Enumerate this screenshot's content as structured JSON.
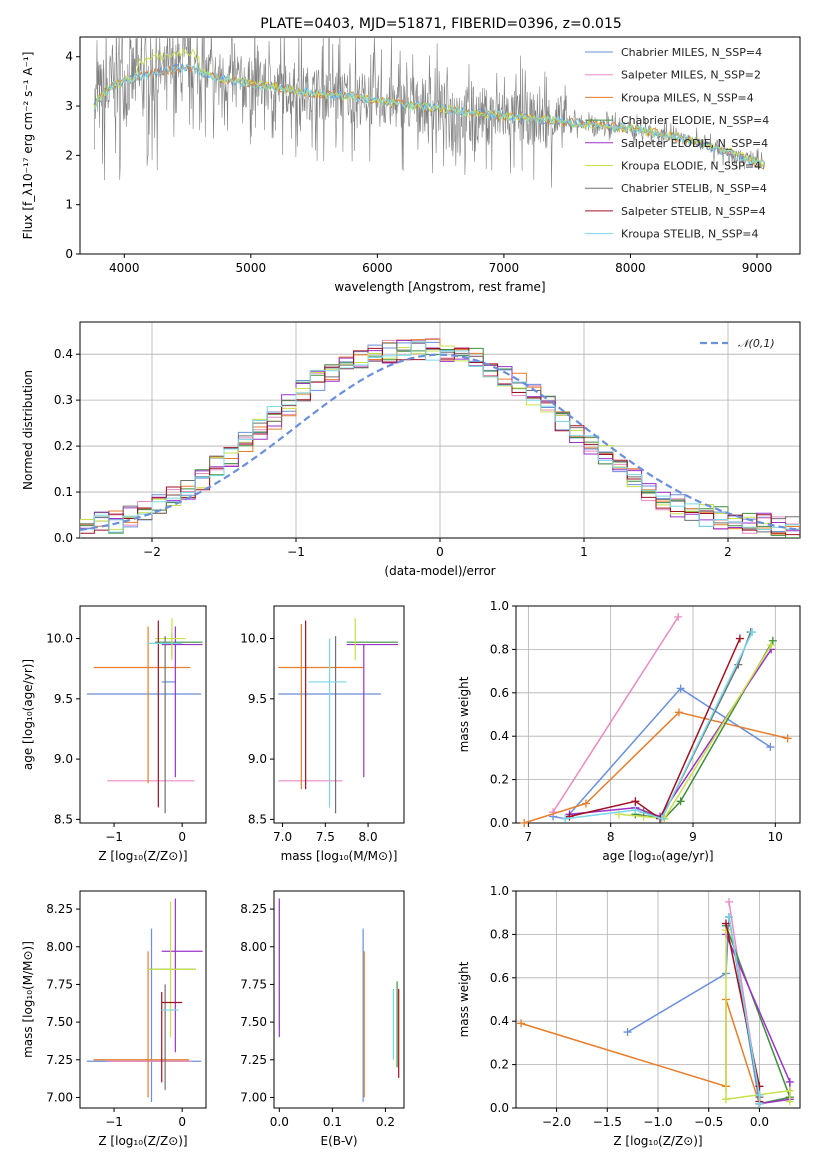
{
  "figure_title": "PLATE=0403, MJD=51871, FIBERID=0396, z=0.015",
  "colors": [
    "#6a8fdb",
    "#e88bc4",
    "#e87d2a",
    "#3f8f3f",
    "#9b33c9",
    "#c8e04a",
    "#707070",
    "#a01020",
    "#78d8e8"
  ],
  "chart_data": [
    {
      "panel": "spectrum",
      "type": "line",
      "xlabel": "wavelength [Angstrom, rest frame]",
      "ylabel": "Flux [f_λ10⁻¹⁷ erg cm⁻² s⁻¹ A⁻¹]",
      "xlim": [
        3650,
        9340
      ],
      "ylim": [
        0,
        4.4
      ],
      "xticks": [
        "4000",
        "5000",
        "6000",
        "7000",
        "8000",
        "9000"
      ],
      "yticks": [
        "0",
        "1",
        "2",
        "3",
        "4"
      ],
      "legend_position": "upper right",
      "legend": [
        "Chabrier MILES, N_SSP=4",
        "Salpeter MILES, N_SSP=2",
        "Kroupa MILES, N_SSP=4",
        "Chabrier ELODIE, N_SSP=4",
        "Salpeter ELODIE, N_SSP=4",
        "Kroupa ELODIE, N_SSP=4",
        "Chabrier STELIB, N_SSP=4",
        "Salpeter STELIB, N_SSP=4",
        "Kroupa STELIB, N_SSP=4"
      ],
      "continuum": {
        "x": [
          3750,
          3800,
          3900,
          4000,
          4100,
          4200,
          4300,
          4400,
          4500,
          4700,
          5000,
          5300,
          5500,
          5800,
          6000,
          6300,
          6500,
          6800,
          7000,
          7200,
          7400,
          7600,
          7800,
          8000,
          8200,
          8400,
          8600,
          8800,
          9000,
          9050
        ],
        "y": [
          2.9,
          3.15,
          3.4,
          3.5,
          3.6,
          3.65,
          3.7,
          3.75,
          3.8,
          3.6,
          3.45,
          3.35,
          3.25,
          3.2,
          3.1,
          3.0,
          2.95,
          2.85,
          2.8,
          2.75,
          2.7,
          2.65,
          2.6,
          2.55,
          2.45,
          2.35,
          2.2,
          2.05,
          1.85,
          1.8
        ]
      },
      "observed_range": [
        3760,
        9060
      ],
      "observed_max": 4.4
    },
    {
      "panel": "residuals",
      "type": "line",
      "xlabel": "(data-model)/error",
      "ylabel": "Normed distribution",
      "xlim": [
        -2.5,
        2.5
      ],
      "ylim": [
        0,
        0.47
      ],
      "xticks": [
        "−2",
        "−1",
        "0",
        "1",
        "2"
      ],
      "yticks": [
        "0.0",
        "0.1",
        "0.2",
        "0.3",
        "0.4"
      ],
      "grid": true,
      "legend": [
        "𝒩(0,1)"
      ],
      "legend_position": "upper right",
      "bin_width": 0.1,
      "hist_curve": [
        0.022,
        0.032,
        0.034,
        0.046,
        0.062,
        0.074,
        0.09,
        0.108,
        0.13,
        0.155,
        0.18,
        0.205,
        0.235,
        0.262,
        0.29,
        0.318,
        0.34,
        0.362,
        0.378,
        0.39,
        0.398,
        0.405,
        0.408,
        0.41,
        0.409,
        0.406,
        0.4,
        0.39,
        0.375,
        0.356,
        0.334,
        0.31,
        0.285,
        0.258,
        0.232,
        0.207,
        0.18,
        0.152,
        0.128,
        0.105,
        0.085,
        0.07,
        0.058,
        0.05,
        0.044,
        0.038,
        0.034,
        0.03,
        0.027,
        0.025
      ]
    },
    {
      "panel": "age-vs-Z",
      "type": "scatter",
      "xlabel": "Z [log₁₀(Z/Z⊙)]",
      "ylabel": "age [log₁₀(age/yr)]",
      "xlim": [
        -1.5,
        0.35
      ],
      "ylim": [
        8.47,
        10.27
      ],
      "xticks": [
        "−1",
        "0"
      ],
      "yticks": [
        "8.5",
        "9.0",
        "9.5",
        "10.0"
      ],
      "points": [
        {
          "c": 0,
          "x": -0.2,
          "y": 9.64,
          "xl": -0.3,
          "xh": -0.1,
          "yl": 9.64,
          "yh": 9.64
        },
        {
          "c": 0,
          "x": -0.4,
          "y": 9.54,
          "xl": -1.4,
          "xh": 0.28,
          "yl": 9.54,
          "yh": 9.54
        },
        {
          "c": 1,
          "x": -0.2,
          "y": 8.82,
          "xl": -1.1,
          "xh": 0.18,
          "yl": 8.82,
          "yh": 8.82
        },
        {
          "c": 2,
          "x": -0.45,
          "y": 9.76,
          "xl": -1.3,
          "xh": 0.12,
          "yl": 9.76,
          "yh": 9.76
        },
        {
          "c": 2,
          "x": -0.5,
          "y": 9.4,
          "xl": -0.5,
          "xh": -0.5,
          "yl": 8.8,
          "yh": 10.1
        },
        {
          "c": 3,
          "x": -0.15,
          "y": 9.97,
          "xl": -0.4,
          "xh": 0.3,
          "yl": 9.85,
          "yh": 10.05
        },
        {
          "c": 4,
          "x": -0.1,
          "y": 9.95,
          "xl": -0.3,
          "xh": 0.3,
          "yl": 8.85,
          "yh": 10.1
        },
        {
          "c": 5,
          "x": -0.15,
          "y": 10.0,
          "xl": -0.4,
          "xh": 0.05,
          "yl": 9.82,
          "yh": 10.17
        },
        {
          "c": 6,
          "x": -0.25,
          "y": 9.8,
          "xl": -0.25,
          "xh": -0.25,
          "yl": 8.55,
          "yh": 10.02
        },
        {
          "c": 7,
          "x": -0.35,
          "y": 9.9,
          "xl": -0.35,
          "xh": -0.35,
          "yl": 8.6,
          "yh": 10.15
        },
        {
          "c": 8,
          "x": -0.3,
          "y": 9.96,
          "xl": -0.5,
          "xh": 0.0,
          "yl": 9.96,
          "yh": 9.96
        }
      ]
    },
    {
      "panel": "age-vs-mass",
      "type": "scatter",
      "xlabel": "mass [log₁₀(M/M⊙)]",
      "ylabel": "",
      "xlim": [
        6.9,
        8.42
      ],
      "ylim": [
        8.47,
        10.27
      ],
      "xticks": [
        "7.0",
        "7.5",
        "8.0"
      ],
      "yticks": [
        "8.5",
        "9.0",
        "9.5",
        "10.0"
      ],
      "points": [
        {
          "c": 0,
          "x": 7.5,
          "y": 9.54,
          "xl": 6.95,
          "xh": 8.15,
          "yl": 9.54,
          "yh": 9.54
        },
        {
          "c": 1,
          "x": 7.3,
          "y": 8.82,
          "xl": 6.95,
          "xh": 7.7,
          "yl": 8.82,
          "yh": 8.82
        },
        {
          "c": 2,
          "x": 7.25,
          "y": 9.76,
          "xl": 6.95,
          "xh": 7.95,
          "yl": 9.76,
          "yh": 9.76
        },
        {
          "c": 2,
          "x": 7.22,
          "y": 9.4,
          "xl": 7.22,
          "xh": 7.22,
          "yl": 8.75,
          "yh": 10.12
        },
        {
          "c": 3,
          "x": 8.0,
          "y": 9.97,
          "xl": 7.75,
          "xh": 8.35,
          "yl": 9.97,
          "yh": 9.97
        },
        {
          "c": 4,
          "x": 7.95,
          "y": 9.95,
          "xl": 7.75,
          "xh": 8.35,
          "yl": 8.85,
          "yh": 9.95
        },
        {
          "c": 5,
          "x": 7.85,
          "y": 10.0,
          "xl": 7.85,
          "xh": 7.85,
          "yl": 9.82,
          "yh": 10.17
        },
        {
          "c": 6,
          "x": 7.62,
          "y": 9.8,
          "xl": 7.62,
          "xh": 7.62,
          "yl": 8.55,
          "yh": 10.02
        },
        {
          "c": 7,
          "x": 7.27,
          "y": 9.9,
          "xl": 7.27,
          "xh": 7.27,
          "yl": 8.75,
          "yh": 10.15
        },
        {
          "c": 8,
          "x": 7.55,
          "y": 9.64,
          "xl": 7.3,
          "xh": 7.75,
          "yl": 9.64,
          "yh": 9.64
        },
        {
          "c": 8,
          "x": 7.55,
          "y": 9.3,
          "xl": 7.55,
          "xh": 7.55,
          "yl": 8.6,
          "yh": 10.0
        }
      ]
    },
    {
      "panel": "weight-vs-age",
      "type": "line",
      "xlabel": "age [log₁₀(age/yr)]",
      "ylabel": "mass weight",
      "xlim": [
        6.85,
        10.3
      ],
      "ylim": [
        0,
        1.0
      ],
      "xticks": [
        "7",
        "8",
        "9",
        "10"
      ],
      "yticks": [
        "0.0",
        "0.2",
        "0.4",
        "0.6",
        "0.8",
        "1.0"
      ],
      "grid": true,
      "series": [
        {
          "c": 0,
          "x": [
            7.3,
            7.45,
            8.85,
            9.94
          ],
          "y": [
            0.03,
            0.02,
            0.62,
            0.35
          ]
        },
        {
          "c": 1,
          "x": [
            7.3,
            8.82
          ],
          "y": [
            0.05,
            0.95
          ]
        },
        {
          "c": 2,
          "x": [
            6.95,
            7.7,
            8.83,
            10.15
          ],
          "y": [
            0.0,
            0.09,
            0.51,
            0.39
          ]
        },
        {
          "c": 3,
          "x": [
            8.3,
            8.65,
            8.85,
            9.97
          ],
          "y": [
            0.04,
            0.02,
            0.1,
            0.84
          ]
        },
        {
          "c": 4,
          "x": [
            7.5,
            8.3,
            8.6,
            9.95
          ],
          "y": [
            0.04,
            0.07,
            0.03,
            0.8
          ]
        },
        {
          "c": 5,
          "x": [
            8.1,
            8.4,
            8.65,
            9.95
          ],
          "y": [
            0.04,
            0.03,
            0.02,
            0.82
          ]
        },
        {
          "c": 6,
          "x": [
            8.4,
            8.62,
            9.55,
            9.7
          ],
          "y": [
            0.05,
            0.02,
            0.73,
            0.88
          ]
        },
        {
          "c": 7,
          "x": [
            7.5,
            8.3,
            8.6,
            9.57
          ],
          "y": [
            0.03,
            0.1,
            0.02,
            0.85
          ]
        },
        {
          "c": 8,
          "x": [
            7.45,
            8.3,
            8.62,
            9.72
          ],
          "y": [
            0.02,
            0.06,
            0.02,
            0.88
          ]
        }
      ]
    },
    {
      "panel": "mass-vs-Z",
      "type": "scatter",
      "xlabel": "Z [log₁₀(Z/Z⊙)]",
      "ylabel": "mass [log₁₀(M/M⊙)]",
      "xlim": [
        -1.5,
        0.35
      ],
      "ylim": [
        6.93,
        8.37
      ],
      "xticks": [
        "−1",
        "0"
      ],
      "yticks": [
        "7.00",
        "7.25",
        "7.50",
        "7.75",
        "8.00",
        "8.25"
      ],
      "points": [
        {
          "c": 0,
          "x": -0.45,
          "y": 7.5,
          "xl": -0.45,
          "xh": -0.45,
          "yl": 6.97,
          "yh": 8.12
        },
        {
          "c": 0,
          "x": -0.4,
          "y": 7.24,
          "xl": -1.4,
          "xh": 0.28,
          "yl": 7.24,
          "yh": 7.24
        },
        {
          "c": 1,
          "x": -0.3,
          "y": 7.24,
          "xl": -1.1,
          "xh": 0.15,
          "yl": 7.24,
          "yh": 7.24
        },
        {
          "c": 2,
          "x": -0.5,
          "y": 7.5,
          "xl": -0.5,
          "xh": -0.5,
          "yl": 7.0,
          "yh": 7.97
        },
        {
          "c": 2,
          "x": -0.6,
          "y": 7.25,
          "xl": -1.3,
          "xh": 0.1,
          "yl": 7.25,
          "yh": 7.25
        },
        {
          "c": 3,
          "x": -0.15,
          "y": 7.85,
          "xl": -0.5,
          "xh": 0.2,
          "yl": 7.85,
          "yh": 7.85
        },
        {
          "c": 4,
          "x": -0.05,
          "y": 7.97,
          "xl": -0.3,
          "xh": 0.3,
          "yl": 7.97,
          "yh": 7.97
        },
        {
          "c": 4,
          "x": -0.1,
          "y": 7.8,
          "xl": -0.1,
          "xh": -0.1,
          "yl": 7.3,
          "yh": 8.32
        },
        {
          "c": 5,
          "x": -0.15,
          "y": 7.85,
          "xl": -0.5,
          "xh": 0.2,
          "yl": 7.85,
          "yh": 7.85
        },
        {
          "c": 5,
          "x": -0.17,
          "y": 7.8,
          "xl": -0.17,
          "xh": -0.17,
          "yl": 7.4,
          "yh": 8.3
        },
        {
          "c": 6,
          "x": -0.25,
          "y": 7.5,
          "xl": -0.25,
          "xh": -0.25,
          "yl": 7.05,
          "yh": 7.75
        },
        {
          "c": 7,
          "x": -0.1,
          "y": 7.63,
          "xl": -0.3,
          "xh": 0.0,
          "yl": 7.63,
          "yh": 7.63
        },
        {
          "c": 7,
          "x": -0.3,
          "y": 7.4,
          "xl": -0.3,
          "xh": -0.3,
          "yl": 7.1,
          "yh": 7.7
        },
        {
          "c": 8,
          "x": -0.2,
          "y": 7.58,
          "xl": -0.3,
          "xh": -0.05,
          "yl": 7.58,
          "yh": 7.58
        }
      ]
    },
    {
      "panel": "mass-vs-EBV",
      "type": "scatter",
      "xlabel": "E(B-V)",
      "ylabel": "",
      "xlim": [
        -0.01,
        0.235
      ],
      "ylim": [
        6.93,
        8.37
      ],
      "xticks": [
        "0.0",
        "0.1",
        "0.2"
      ],
      "yticks": [
        "7.00",
        "7.25",
        "7.50",
        "7.75",
        "8.00",
        "8.25"
      ],
      "points": [
        {
          "c": 5,
          "x": 0.0,
          "y": 7.9,
          "xl": 0.0,
          "xh": 0.0,
          "yl": 7.45,
          "yh": 8.3
        },
        {
          "c": 4,
          "x": 0.0,
          "y": 7.7,
          "xl": 0.0,
          "xh": 0.0,
          "yl": 7.4,
          "yh": 8.32
        },
        {
          "c": 0,
          "x": 0.158,
          "y": 7.5,
          "xl": 0.158,
          "xh": 0.158,
          "yl": 6.97,
          "yh": 8.12
        },
        {
          "c": 2,
          "x": 0.16,
          "y": 7.5,
          "xl": 0.16,
          "xh": 0.16,
          "yl": 7.0,
          "yh": 7.97
        },
        {
          "c": 7,
          "x": 0.225,
          "y": 7.4,
          "xl": 0.225,
          "xh": 0.225,
          "yl": 7.13,
          "yh": 7.72
        },
        {
          "c": 3,
          "x": 0.222,
          "y": 7.5,
          "xl": 0.222,
          "xh": 0.222,
          "yl": 7.2,
          "yh": 7.77
        },
        {
          "c": 8,
          "x": 0.215,
          "y": 7.5,
          "xl": 0.215,
          "xh": 0.215,
          "yl": 7.25,
          "yh": 7.72
        }
      ]
    },
    {
      "panel": "weight-vs-Z",
      "type": "line",
      "xlabel": "Z [log₁₀(Z/Z⊙)]",
      "ylabel": "mass weight",
      "xlim": [
        -2.4,
        0.4
      ],
      "ylim": [
        0,
        1.0
      ],
      "xticks": [
        "−2.0",
        "−1.5",
        "−1.0",
        "−0.5",
        "0.0"
      ],
      "yticks": [
        "0.0",
        "0.2",
        "0.4",
        "0.6",
        "0.8",
        "1.0"
      ],
      "grid": true,
      "series": [
        {
          "c": 0,
          "x": [
            -1.3,
            -0.33,
            -0.3,
            0.0
          ],
          "y": [
            0.35,
            0.62,
            0.88,
            0.02
          ]
        },
        {
          "c": 1,
          "x": [
            -0.3,
            0.0
          ],
          "y": [
            0.95,
            0.05
          ]
        },
        {
          "c": 2,
          "x": [
            -2.35,
            -0.33,
            -0.33,
            0.0
          ],
          "y": [
            0.39,
            0.1,
            0.5,
            0.02
          ]
        },
        {
          "c": 3,
          "x": [
            -0.33,
            0.3,
            0.0
          ],
          "y": [
            0.84,
            0.05,
            0.02
          ]
        },
        {
          "c": 4,
          "x": [
            -0.33,
            0.3,
            0.3,
            0.0
          ],
          "y": [
            0.8,
            0.12,
            0.04,
            0.02
          ]
        },
        {
          "c": 5,
          "x": [
            -0.33,
            -0.33,
            0.3,
            0.3
          ],
          "y": [
            0.82,
            0.04,
            0.08,
            0.03
          ]
        },
        {
          "c": 6,
          "x": [
            -0.3,
            0.0,
            0.0
          ],
          "y": [
            0.88,
            0.05,
            0.02
          ]
        },
        {
          "c": 7,
          "x": [
            -0.33,
            0.0,
            0.0
          ],
          "y": [
            0.85,
            0.1,
            0.03
          ]
        },
        {
          "c": 8,
          "x": [
            -0.3,
            0.0,
            0.0
          ],
          "y": [
            0.88,
            0.06,
            0.02
          ]
        }
      ]
    }
  ]
}
